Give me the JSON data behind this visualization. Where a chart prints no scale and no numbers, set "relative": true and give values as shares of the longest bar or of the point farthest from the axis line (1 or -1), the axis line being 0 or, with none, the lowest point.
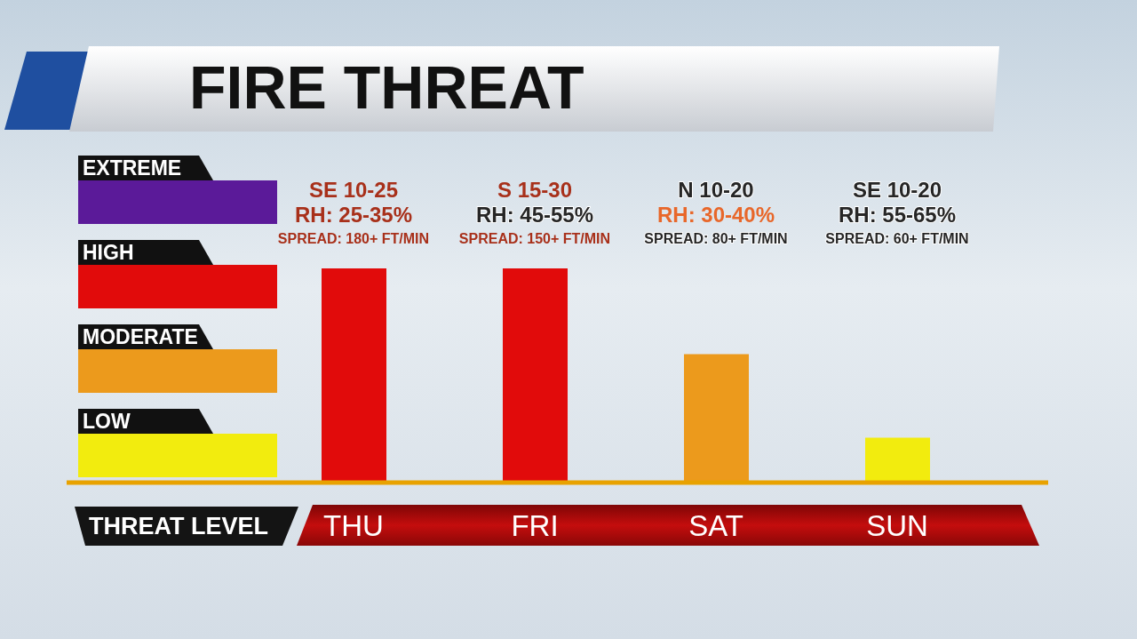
{
  "chart_data": {
    "type": "bar",
    "title": "FIRE THREAT",
    "ylabel": "THREAT LEVEL",
    "relative": true,
    "categories": [
      "THU",
      "FRI",
      "SAT",
      "SUN"
    ],
    "values": [
      1,
      1,
      0.6,
      0.21
    ],
    "colors": [
      "#e10b0b",
      "#e10b0b",
      "#ec9a1c",
      "#f2ec0e"
    ],
    "annotations": [
      "EXTREME",
      "HIGH",
      "MODERATE",
      "LOW",
      "SE 10-25",
      "RH: 25-35%",
      "SPREAD: 180+ FT/MIN",
      "S 15-30",
      "RH: 45-55%",
      "SPREAD: 150+ FT/MIN",
      "N 10-20",
      "RH: 30-40%",
      "SPREAD: 80+ FT/MIN",
      "SE 10-20",
      "RH: 55-65%",
      "SPREAD: 60+ FT/MIN"
    ]
  }
}
